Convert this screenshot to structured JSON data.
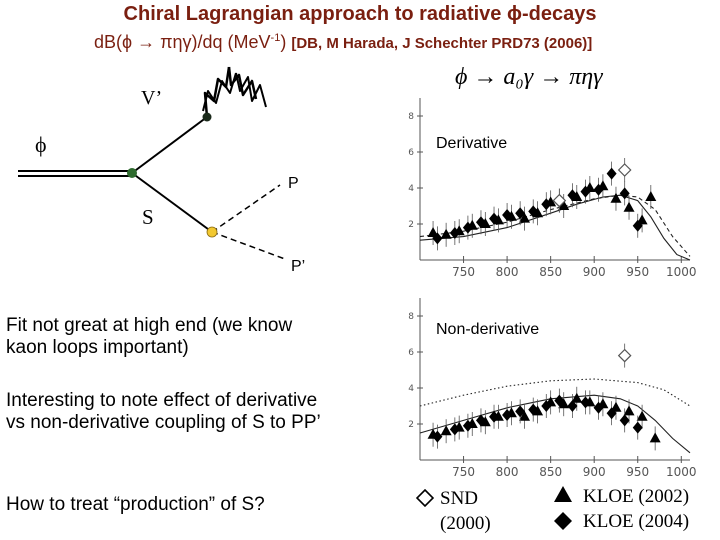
{
  "title": "Chiral Lagrangian approach to radiative ϕ-decays",
  "subtitle": {
    "main": "dB(ϕ → πηγ)/dq (MeV",
    "sup": "-1",
    "close": ")",
    "reference": "[DB, M Harada, J Schechter PRD73 (2006)]"
  },
  "formula": "ϕ → a₀γ → πηγ",
  "diagram": {
    "v_label": "V’",
    "phi_label": "ϕ",
    "s_label": "S",
    "p_label": "P",
    "pp_label": "P’"
  },
  "text": {
    "fit_note": "Fit not great at high end (we know kaon loops important)",
    "interest_note": "Interesting to note effect of derivative vs non-derivative coupling of S to PP’",
    "question": "How to treat “production” of S?"
  },
  "legend": {
    "snd_1": "SND",
    "snd_2": "(2000)",
    "kloe2002": "KLOE (2002)",
    "kloe2004": "KLOE (2004)"
  },
  "chart_data": [
    {
      "type": "scatter",
      "title": "Derivative",
      "xlabel": "",
      "ylabel": "",
      "xlim": [
        700,
        1010
      ],
      "ylim": [
        0,
        9
      ],
      "x_ticks": [
        750,
        800,
        850,
        900,
        950,
        1000
      ],
      "y_ticks": [
        2,
        4,
        6,
        8
      ],
      "series": [
        {
          "name": "KLOE (2002)",
          "marker": "triangle",
          "x": [
            715,
            730,
            745,
            760,
            775,
            790,
            805,
            820,
            835,
            850,
            865,
            880,
            895,
            910,
            925,
            940,
            955,
            965
          ],
          "y": [
            1.5,
            1.4,
            1.6,
            1.9,
            2.0,
            2.2,
            2.4,
            2.3,
            2.6,
            3.2,
            3.0,
            3.5,
            4.0,
            4.1,
            3.4,
            2.9,
            2.2,
            3.5
          ]
        },
        {
          "name": "KLOE (2004)",
          "marker": "diamond",
          "x": [
            720,
            740,
            755,
            770,
            785,
            800,
            815,
            830,
            845,
            860,
            875,
            890,
            905,
            920,
            935,
            950
          ],
          "y": [
            1.2,
            1.5,
            1.8,
            2.1,
            2.3,
            2.5,
            2.6,
            2.7,
            3.1,
            3.3,
            3.6,
            3.8,
            3.9,
            4.8,
            3.7,
            1.9
          ]
        },
        {
          "name": "SND (2000)",
          "marker": "open-diamond",
          "x": [
            860,
            935
          ],
          "y": [
            3.3,
            5.0
          ]
        }
      ],
      "curves": [
        {
          "name": "fit",
          "style": "solid",
          "x": [
            700,
            750,
            800,
            850,
            880,
            910,
            930,
            950,
            965,
            980,
            995,
            1010
          ],
          "y": [
            1.1,
            1.3,
            1.8,
            2.6,
            3.1,
            3.5,
            3.6,
            3.3,
            2.4,
            1.2,
            0.3,
            0.0
          ]
        },
        {
          "name": "comparison",
          "style": "dashed",
          "x": [
            700,
            750,
            800,
            850,
            900,
            930,
            950,
            970,
            990,
            1010
          ],
          "y": [
            1.3,
            1.6,
            2.1,
            2.8,
            3.4,
            3.6,
            3.5,
            2.8,
            1.3,
            0.2
          ]
        }
      ]
    },
    {
      "type": "scatter",
      "title": "Non-derivative",
      "xlabel": "",
      "ylabel": "",
      "xlim": [
        700,
        1010
      ],
      "ylim": [
        0,
        9
      ],
      "x_ticks": [
        750,
        800,
        850,
        900,
        950,
        1000
      ],
      "y_ticks": [
        2,
        4,
        6,
        8
      ],
      "series": [
        {
          "name": "KLOE (2002)",
          "marker": "triangle",
          "x": [
            715,
            730,
            745,
            760,
            775,
            790,
            805,
            820,
            835,
            850,
            865,
            880,
            895,
            910,
            925,
            940,
            955,
            970
          ],
          "y": [
            1.4,
            1.6,
            1.8,
            2.0,
            2.1,
            2.4,
            2.6,
            2.4,
            2.7,
            3.2,
            3.1,
            3.4,
            3.2,
            3.1,
            2.9,
            2.7,
            2.4,
            1.2
          ]
        },
        {
          "name": "KLOE (2004)",
          "marker": "diamond",
          "x": [
            720,
            740,
            755,
            770,
            785,
            800,
            815,
            830,
            845,
            860,
            875,
            890,
            905,
            920,
            935,
            950
          ],
          "y": [
            1.3,
            1.7,
            1.9,
            2.2,
            2.4,
            2.5,
            2.7,
            2.8,
            3.0,
            3.3,
            3.0,
            3.2,
            2.9,
            2.6,
            2.2,
            1.8
          ]
        },
        {
          "name": "SND (2000)",
          "marker": "open-diamond",
          "x": [
            935
          ],
          "y": [
            5.8
          ]
        }
      ],
      "curves": [
        {
          "name": "fit",
          "style": "solid",
          "x": [
            700,
            750,
            800,
            850,
            900,
            930,
            950,
            970,
            990,
            1010
          ],
          "y": [
            1.5,
            2.2,
            2.9,
            3.4,
            3.6,
            3.4,
            3.0,
            2.2,
            1.2,
            0.4
          ]
        },
        {
          "name": "comparison",
          "style": "dotted",
          "x": [
            700,
            750,
            800,
            850,
            900,
            950,
            980,
            1010
          ],
          "y": [
            3.0,
            3.6,
            4.1,
            4.4,
            4.5,
            4.3,
            3.9,
            3.0
          ]
        }
      ]
    }
  ]
}
